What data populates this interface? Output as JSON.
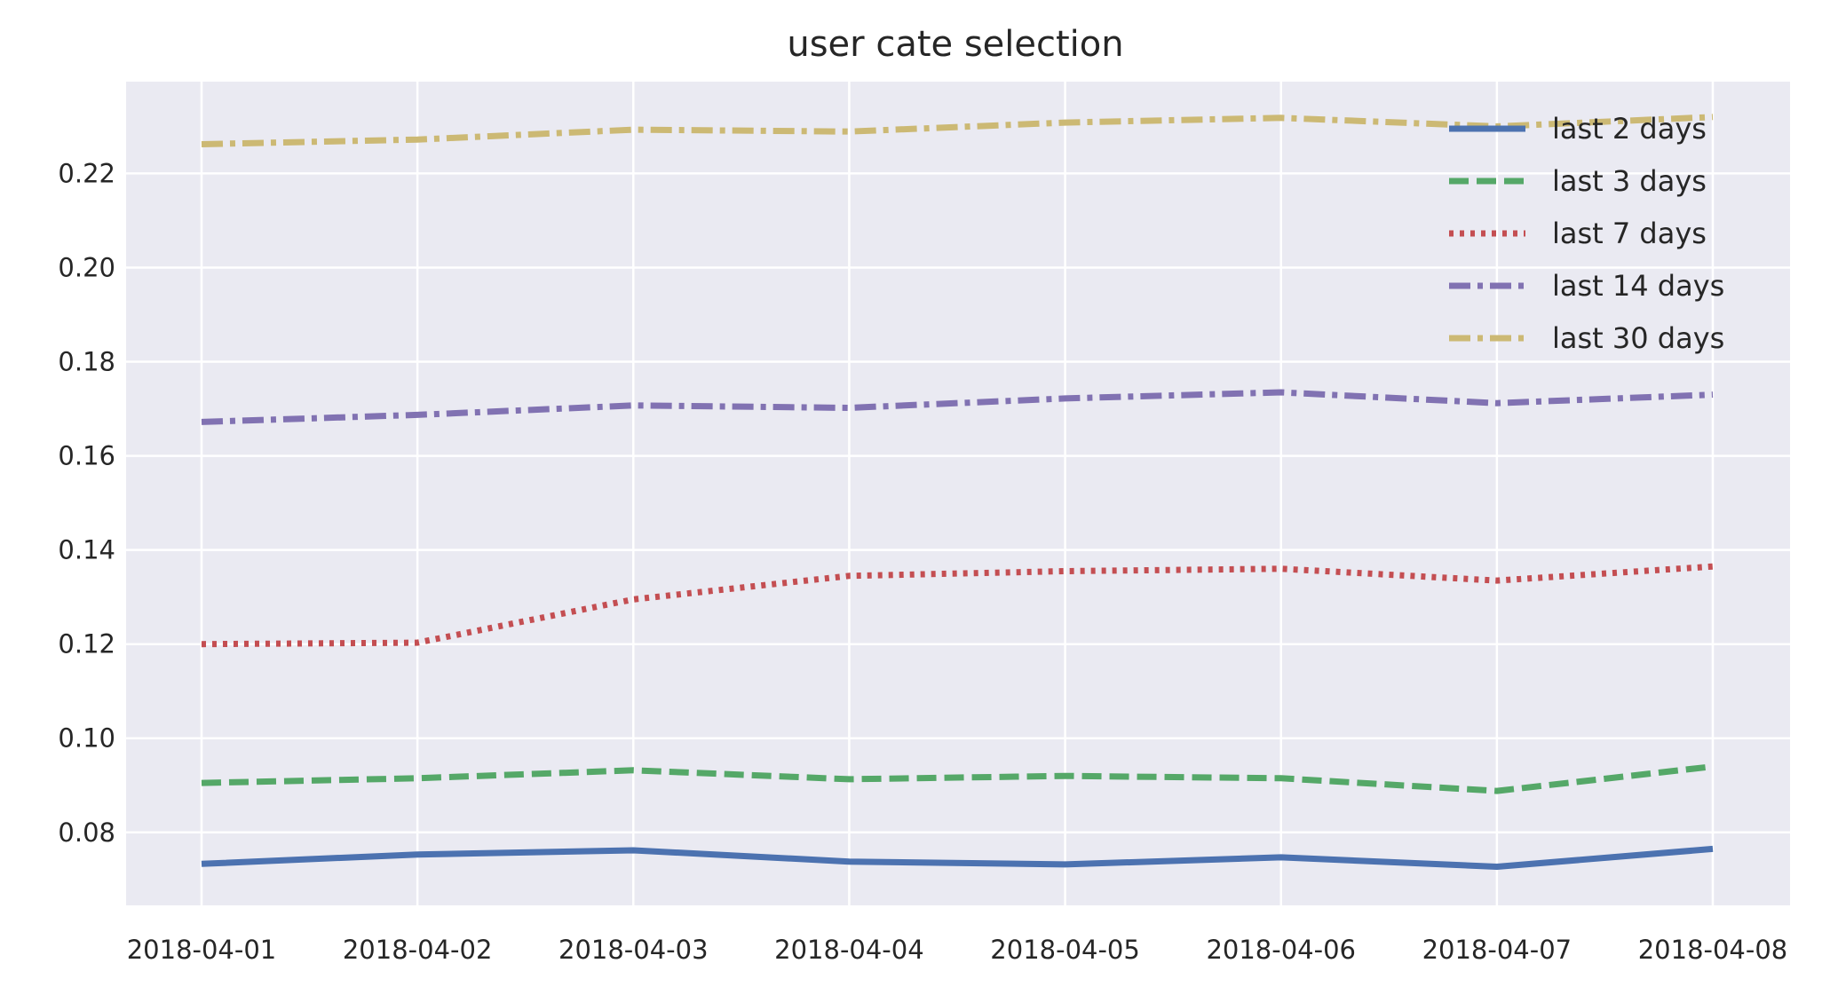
{
  "chart_data": {
    "type": "line",
    "title": "user cate selection",
    "xlabel": "",
    "ylabel": "",
    "x": [
      "2018-04-01",
      "2018-04-02",
      "2018-04-03",
      "2018-04-04",
      "2018-04-05",
      "2018-04-06",
      "2018-04-07",
      "2018-04-08"
    ],
    "ylim": [
      0.0645,
      0.2395
    ],
    "yticks": [
      "0.08",
      "0.10",
      "0.12",
      "0.14",
      "0.16",
      "0.18",
      "0.20",
      "0.22"
    ],
    "grid": true,
    "legend_position": "top-right",
    "background_color": "#eaeaf2",
    "series": [
      {
        "name": "last 2 days",
        "color": "#4c72b0",
        "style": "solid",
        "values": [
          0.0733,
          0.0753,
          0.0762,
          0.0738,
          0.0732,
          0.0747,
          0.0727,
          0.0765
        ]
      },
      {
        "name": "last 3 days",
        "color": "#55a868",
        "style": "dashed",
        "values": [
          0.0905,
          0.0915,
          0.0932,
          0.0913,
          0.092,
          0.0915,
          0.0888,
          0.094
        ]
      },
      {
        "name": "last 7 days",
        "color": "#c44e52",
        "style": "dotted",
        "values": [
          0.12,
          0.1203,
          0.1295,
          0.1345,
          0.1355,
          0.136,
          0.1335,
          0.1365
        ]
      },
      {
        "name": "last 14 days",
        "color": "#8172b2",
        "style": "dashdot",
        "values": [
          0.1672,
          0.1687,
          0.1707,
          0.1702,
          0.1722,
          0.1735,
          0.1712,
          0.173
        ]
      },
      {
        "name": "last 30 days",
        "color": "#ccb974",
        "style": "dashdot",
        "values": [
          0.2262,
          0.2272,
          0.2293,
          0.2289,
          0.2308,
          0.2318,
          0.23,
          0.232
        ]
      }
    ]
  }
}
